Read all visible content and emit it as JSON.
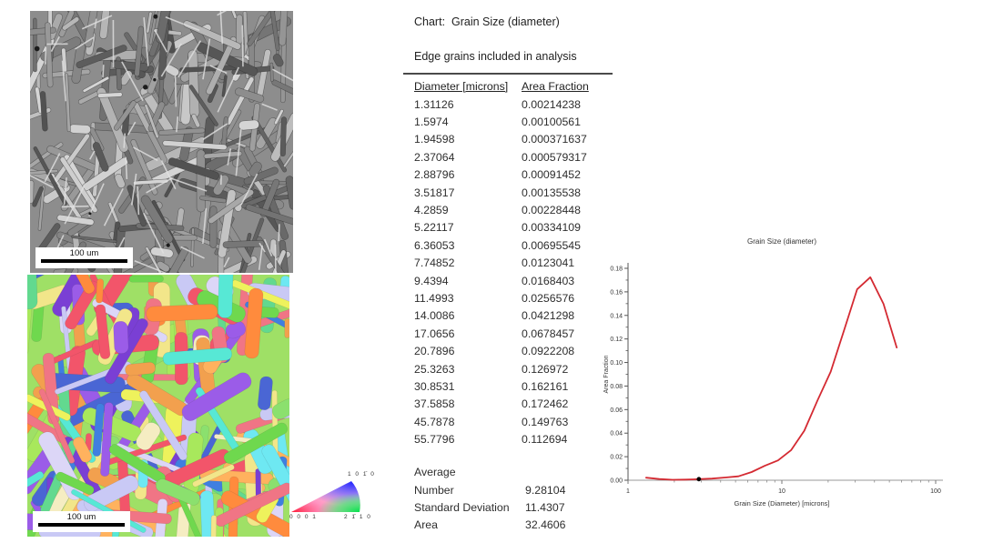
{
  "sem_image": {
    "scale_bar_label": "100 um"
  },
  "ebsd_image": {
    "scale_bar_label": "100 um"
  },
  "ipf_legend": {
    "top_label": "1 0 1̄ 0",
    "bottom_left_label": "0 0 0 1",
    "bottom_right_label": "2 1̄ 1 0"
  },
  "table": {
    "title": "Chart:  Grain Size (diameter)",
    "subtitle": "Edge grains included in analysis",
    "columns": [
      "Diameter [microns]",
      "Area Fraction"
    ],
    "rows": [
      [
        "1.31126",
        "0.00214238"
      ],
      [
        "1.5974",
        "0.00100561"
      ],
      [
        "1.94598",
        "0.000371637"
      ],
      [
        "2.37064",
        "0.000579317"
      ],
      [
        "2.88796",
        "0.00091452"
      ],
      [
        "3.51817",
        "0.00135538"
      ],
      [
        "4.2859",
        "0.00228448"
      ],
      [
        "5.22117",
        "0.00334109"
      ],
      [
        "6.36053",
        "0.00695545"
      ],
      [
        "7.74852",
        "0.0123041"
      ],
      [
        "9.4394",
        "0.0168403"
      ],
      [
        "11.4993",
        "0.0256576"
      ],
      [
        "14.0086",
        "0.0421298"
      ],
      [
        "17.0656",
        "0.0678457"
      ],
      [
        "20.7896",
        "0.0922208"
      ],
      [
        "25.3263",
        "0.126972"
      ],
      [
        "30.8531",
        "0.162161"
      ],
      [
        "37.5858",
        "0.172462"
      ],
      [
        "45.7878",
        "0.149763"
      ],
      [
        "55.7796",
        "0.112694"
      ]
    ],
    "stats": {
      "header": "Average",
      "items": [
        [
          "Number",
          "9.28104"
        ],
        [
          "Standard Deviation",
          "11.4307"
        ],
        [
          "Area",
          "32.4606"
        ]
      ]
    }
  },
  "chart_data": {
    "type": "line",
    "title": "Grain Size (diameter)",
    "xlabel": "Grain Size (Diameter) [microns]",
    "ylabel": "Area Fraction",
    "x_scale": "log",
    "xlim": [
      1,
      100
    ],
    "ylim": [
      0,
      0.18
    ],
    "x_ticks_labeled": [
      "1",
      "10",
      "100"
    ],
    "y_tick_step": 0.02,
    "grid": false,
    "legend": "none",
    "line_color": "#d42a32",
    "marker_point": {
      "x": 2.88796,
      "y": 0.00091452,
      "color": "#000000"
    },
    "series": [
      {
        "name": "Area Fraction",
        "x": [
          1.31126,
          1.5974,
          1.94598,
          2.37064,
          2.88796,
          3.51817,
          4.2859,
          5.22117,
          6.36053,
          7.74852,
          9.4394,
          11.4993,
          14.0086,
          17.0656,
          20.7896,
          25.3263,
          30.8531,
          37.5858,
          45.7878,
          55.7796
        ],
        "y": [
          0.00214238,
          0.00100561,
          0.000371637,
          0.000579317,
          0.00091452,
          0.00135538,
          0.00228448,
          0.00334109,
          0.00695545,
          0.0123041,
          0.0168403,
          0.0256576,
          0.0421298,
          0.0678457,
          0.0922208,
          0.126972,
          0.162161,
          0.172462,
          0.149763,
          0.112694
        ]
      }
    ]
  }
}
